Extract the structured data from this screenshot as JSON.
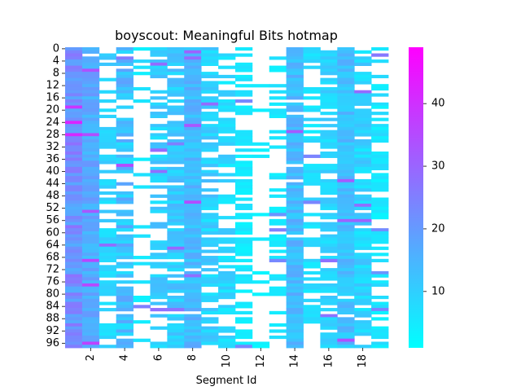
{
  "chart_data": {
    "type": "heatmap",
    "title": "boyscout: Meaningful Bits hotmap",
    "xlabel": "Segment Id",
    "ylabel": "",
    "n_rows": 98,
    "n_cols": 19,
    "x_ticks": [
      2,
      4,
      6,
      8,
      10,
      12,
      14,
      16,
      18
    ],
    "y_ticks": [
      0,
      4,
      8,
      12,
      16,
      20,
      24,
      28,
      32,
      36,
      40,
      44,
      48,
      52,
      56,
      60,
      64,
      68,
      72,
      76,
      80,
      84,
      88,
      92,
      96
    ],
    "colorbar": {
      "min": 1,
      "max": 49,
      "ticks": [
        10,
        20,
        30,
        40
      ],
      "colormap": "cool"
    },
    "colormap_colors": {
      "low": "#00ffff",
      "high": "#ff00ff"
    },
    "missing_color": "#ffffff",
    "column_profile": [
      {
        "col": 1,
        "fill": 1.0,
        "mean": 22,
        "spread": 6
      },
      {
        "col": 2,
        "fill": 0.97,
        "mean": 17,
        "spread": 4
      },
      {
        "col": 3,
        "fill": 0.62,
        "mean": 9,
        "spread": 3
      },
      {
        "col": 4,
        "fill": 0.72,
        "mean": 13,
        "spread": 6
      },
      {
        "col": 5,
        "fill": 0.22,
        "mean": 6,
        "spread": 3
      },
      {
        "col": 6,
        "fill": 0.62,
        "mean": 10,
        "spread": 4
      },
      {
        "col": 7,
        "fill": 0.8,
        "mean": 11,
        "spread": 4
      },
      {
        "col": 8,
        "fill": 0.97,
        "mean": 14,
        "spread": 4
      },
      {
        "col": 9,
        "fill": 0.74,
        "mean": 10,
        "spread": 4
      },
      {
        "col": 10,
        "fill": 0.62,
        "mean": 8,
        "spread": 4
      },
      {
        "col": 11,
        "fill": 0.68,
        "mean": 5,
        "spread": 2
      },
      {
        "col": 12,
        "fill": 0.08,
        "mean": 4,
        "spread": 2
      },
      {
        "col": 13,
        "fill": 0.42,
        "mean": 5,
        "spread": 2
      },
      {
        "col": 14,
        "fill": 0.94,
        "mean": 14,
        "spread": 4
      },
      {
        "col": 15,
        "fill": 0.52,
        "mean": 7,
        "spread": 3
      },
      {
        "col": 16,
        "fill": 0.82,
        "mean": 9,
        "spread": 3
      },
      {
        "col": 17,
        "fill": 0.98,
        "mean": 13,
        "spread": 4
      },
      {
        "col": 18,
        "fill": 0.8,
        "mean": 9,
        "spread": 4
      },
      {
        "col": 19,
        "fill": 0.58,
        "mean": 6,
        "spread": 3
      }
    ]
  }
}
